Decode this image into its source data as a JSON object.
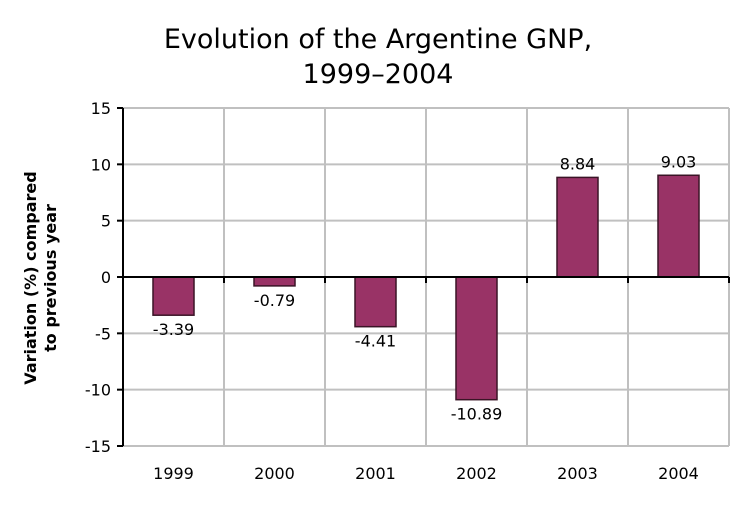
{
  "chart_data": {
    "type": "bar",
    "title": [
      "Evolution of the Argentine GNP,",
      "1999–2004"
    ],
    "ylabel": [
      "Variation (%) compared",
      "to previous year"
    ],
    "xlabel": "",
    "categories": [
      "1999",
      "2000",
      "2001",
      "2002",
      "2003",
      "2004"
    ],
    "values": [
      -3.39,
      -0.79,
      -4.41,
      -10.89,
      8.84,
      9.03
    ],
    "data_labels": [
      "-3.39",
      "-0.79",
      "-4.41",
      "-10.89",
      "8.84",
      "9.03"
    ],
    "ylim": [
      -15,
      15
    ],
    "yticks": [
      15,
      10,
      5,
      0,
      -5,
      -10,
      -15
    ],
    "grid": true,
    "legend": "none",
    "colors": {
      "bar": "#993366",
      "bar_border": "#3a1426",
      "grid": "#c0c0c0"
    }
  }
}
